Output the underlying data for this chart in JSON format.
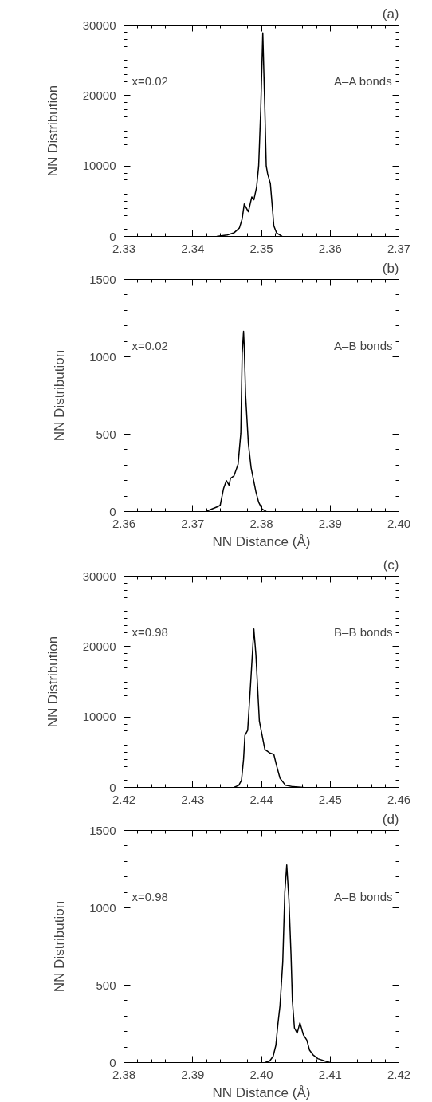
{
  "chart_data": [
    {
      "type": "line",
      "title": "(a)",
      "ylabel": "NN Distribution",
      "annotations": [
        "x=0.02",
        "A–A bonds"
      ],
      "grid": false,
      "line_style": "solid",
      "marker": "none",
      "xlim": [
        2.33,
        2.37
      ],
      "xticks": [
        2.33,
        2.34,
        2.35,
        2.36,
        2.37
      ],
      "ylim": [
        0,
        30000
      ],
      "yticks": [
        0,
        10000,
        20000,
        30000
      ],
      "series": [
        {
          "color": "#000000",
          "x": [
            2.3435,
            2.345,
            2.346,
            2.3468,
            2.3472,
            2.3475,
            2.3481,
            2.3486,
            2.3489,
            2.3493,
            2.3496,
            2.3499,
            2.3502,
            2.3505,
            2.3507,
            2.3509,
            2.3513,
            2.3516,
            2.3518,
            2.3522,
            2.353
          ],
          "values": [
            0,
            200,
            500,
            1200,
            2500,
            4600,
            3500,
            5600,
            5200,
            7000,
            10000,
            18000,
            28900,
            18000,
            10000,
            8900,
            7500,
            4000,
            1500,
            500,
            0
          ]
        }
      ]
    },
    {
      "type": "line",
      "title": "(b)",
      "xlabel": "NN Distance (Å)",
      "ylabel": "NN Distribution",
      "annotations": [
        "x=0.02",
        "A–B bonds"
      ],
      "grid": false,
      "line_style": "solid",
      "marker": "none",
      "xlim": [
        2.36,
        2.4
      ],
      "xticks": [
        2.36,
        2.37,
        2.38,
        2.39,
        {
          "value": 2.4,
          "label": "2.40"
        }
      ],
      "ylim": [
        0,
        1500
      ],
      "yticks": [
        0,
        500,
        1000,
        1500
      ],
      "series": [
        {
          "color": "#000000",
          "x": [
            2.3719,
            2.3736,
            2.374,
            2.3745,
            2.3749,
            2.3753,
            2.3755,
            2.376,
            2.3766,
            2.377,
            2.3772,
            2.3774,
            2.3775,
            2.3777,
            2.3781,
            2.3785,
            2.3788,
            2.3792,
            2.3796,
            2.3801,
            2.3807
          ],
          "values": [
            0,
            31,
            40,
            150,
            200,
            170,
            215,
            230,
            305,
            507,
            1020,
            1165,
            1065,
            750,
            440,
            283,
            216,
            127,
            60,
            16,
            0
          ]
        }
      ]
    },
    {
      "type": "line",
      "title": "(c)",
      "ylabel": "NN Distribution",
      "annotations": [
        "x=0.98",
        "B–B bonds"
      ],
      "grid": false,
      "line_style": "solid",
      "marker": "none",
      "xlim": [
        2.42,
        2.46
      ],
      "xticks": [
        2.42,
        2.43,
        2.44,
        2.45,
        2.46
      ],
      "ylim": [
        0,
        30000
      ],
      "yticks": [
        0,
        10000,
        20000,
        30000
      ],
      "series": [
        {
          "color": "#000000",
          "x": [
            2.436,
            2.4367,
            2.4371,
            2.4374,
            2.4376,
            2.438,
            2.4384,
            2.4389,
            2.4392,
            2.4397,
            2.4405,
            2.4412,
            2.4418,
            2.4422,
            2.4427,
            2.4435,
            2.4446,
            2.4461
          ],
          "values": [
            0,
            300,
            1000,
            4000,
            7400,
            8100,
            14300,
            22500,
            18800,
            9400,
            5400,
            4900,
            4700,
            3100,
            1300,
            300,
            100,
            0
          ]
        }
      ]
    },
    {
      "type": "line",
      "title": "(d)",
      "xlabel": "NN Distance (Å)",
      "ylabel": "NN Distribution",
      "annotations": [
        "x=0.98",
        "A–B bonds"
      ],
      "grid": false,
      "line_style": "solid",
      "marker": "none",
      "xlim": [
        2.38,
        2.42
      ],
      "xticks": [
        2.38,
        2.39,
        {
          "value": 2.4,
          "label": "2.40"
        },
        2.41,
        2.42
      ],
      "ylim": [
        0,
        1500
      ],
      "yticks": [
        0,
        500,
        1000,
        1500
      ],
      "series": [
        {
          "color": "#000000",
          "x": [
            2.4005,
            2.4012,
            2.4017,
            2.4021,
            2.4024,
            2.4027,
            2.4031,
            2.4034,
            2.40368,
            2.404,
            2.4043,
            2.4045,
            2.4048,
            2.4052,
            2.4056,
            2.4061,
            2.4066,
            2.407,
            2.4075,
            2.4082,
            2.4092,
            2.41
          ],
          "values": [
            0,
            10,
            40,
            112,
            250,
            368,
            650,
            1100,
            1277,
            1050,
            700,
            400,
            223,
            190,
            257,
            179,
            145,
            80,
            50,
            25,
            10,
            0
          ]
        }
      ]
    }
  ]
}
